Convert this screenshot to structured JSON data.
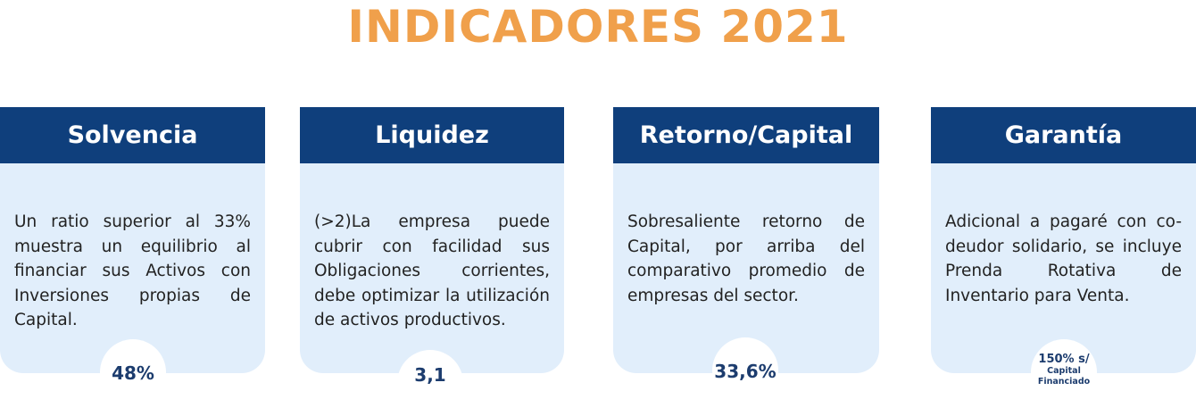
{
  "title": "INDICADORES 2021",
  "cards": [
    {
      "header": "Solvencia",
      "text": "Un ratio  superior al 33% muestra un equilibrio al financiar sus Activos con Inversiones propias de Capital.",
      "value": "48%"
    },
    {
      "header": "Liquidez",
      "text": "(>2)La empresa puede cubrir con facilidad sus Obligaciones corrientes, debe optimizar la utilización de activos productivos.",
      "value": "3,1"
    },
    {
      "header": "Retorno/Capital",
      "text": "Sobresaliente retorno de Capital, por arriba del comparativo promedio de empresas del sector.",
      "value": "33,6%"
    },
    {
      "header": "Garantía",
      "text": "Adicional a pagaré con co-deudor solidario, se incluye Prenda Rotativa de Inventario para Venta.",
      "value_lines": [
        "150% s/",
        "Capital",
        "Financiado"
      ]
    }
  ],
  "colors": {
    "title": "#F0A04B",
    "header_bg": "#0F3F7C",
    "card_bg": "#E1EEFB",
    "value_text": "#1C3C6E"
  }
}
